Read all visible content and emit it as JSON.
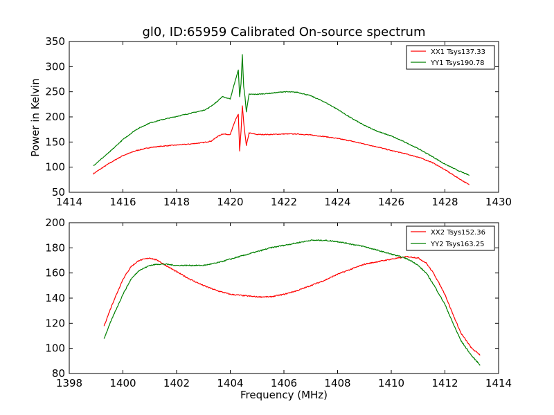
{
  "chart_data": [
    {
      "type": "line",
      "title": "gl0, ID:65959 Calibrated On-source spectrum",
      "xlabel": "",
      "ylabel": "Power in Kelvin",
      "xlim": [
        1414,
        1430
      ],
      "ylim": [
        50,
        350
      ],
      "xticks": [
        1414,
        1416,
        1418,
        1420,
        1422,
        1424,
        1426,
        1428,
        1430
      ],
      "yticks": [
        50,
        100,
        150,
        200,
        250,
        300,
        350
      ],
      "legend_position": "top-right",
      "grid": false,
      "series": [
        {
          "name": "XX1 Tsys137.33",
          "color": "#ff0000",
          "x": [
            1414.9,
            1415.5,
            1416.0,
            1416.5,
            1417.0,
            1417.5,
            1418.0,
            1418.5,
            1419.0,
            1419.3,
            1419.5,
            1419.7,
            1420.0,
            1420.2,
            1420.3,
            1420.35,
            1420.4,
            1420.45,
            1420.5,
            1420.55,
            1420.6,
            1420.7,
            1421.0,
            1421.5,
            1422.0,
            1422.5,
            1423.0,
            1423.5,
            1424.0,
            1424.5,
            1425.0,
            1425.5,
            1426.0,
            1426.5,
            1427.0,
            1427.5,
            1428.0,
            1428.5,
            1428.9
          ],
          "values": [
            87,
            108,
            123,
            133,
            139,
            142,
            144,
            146,
            149,
            152,
            160,
            166,
            165,
            195,
            205,
            132,
            170,
            222,
            190,
            165,
            143,
            168,
            165,
            165,
            166,
            166,
            164,
            161,
            157,
            152,
            146,
            140,
            133,
            127,
            120,
            110,
            95,
            78,
            65
          ]
        },
        {
          "name": "YY1 Tsys190.78",
          "color": "#008000",
          "x": [
            1414.9,
            1415.5,
            1416.0,
            1416.5,
            1417.0,
            1417.5,
            1418.0,
            1418.5,
            1419.0,
            1419.2,
            1419.5,
            1419.7,
            1420.0,
            1420.2,
            1420.3,
            1420.35,
            1420.4,
            1420.45,
            1420.5,
            1420.55,
            1420.6,
            1420.7,
            1421.0,
            1421.5,
            1422.0,
            1422.5,
            1423.0,
            1423.5,
            1424.0,
            1424.5,
            1425.0,
            1425.5,
            1426.0,
            1426.5,
            1427.0,
            1427.5,
            1428.0,
            1428.5,
            1428.9
          ],
          "values": [
            103,
            130,
            155,
            175,
            188,
            195,
            201,
            207,
            213,
            218,
            230,
            240,
            236,
            275,
            293,
            240,
            265,
            324,
            260,
            240,
            210,
            245,
            245,
            247,
            250,
            249,
            242,
            230,
            215,
            198,
            183,
            171,
            162,
            150,
            137,
            122,
            106,
            93,
            84
          ]
        }
      ]
    },
    {
      "type": "line",
      "title": "",
      "xlabel": "Frequency (MHz)",
      "ylabel": "",
      "xlim": [
        1398,
        1414
      ],
      "ylim": [
        80,
        200
      ],
      "xticks": [
        1398,
        1400,
        1402,
        1404,
        1406,
        1408,
        1410,
        1412,
        1414
      ],
      "yticks": [
        80,
        100,
        120,
        140,
        160,
        180,
        200
      ],
      "legend_position": "top-right",
      "grid": false,
      "series": [
        {
          "name": "XX2 Tsys152.36",
          "color": "#ff0000",
          "x": [
            1399.3,
            1399.6,
            1400.0,
            1400.3,
            1400.6,
            1401.0,
            1401.3,
            1401.6,
            1402.0,
            1402.5,
            1403.0,
            1403.5,
            1404.0,
            1404.5,
            1405.0,
            1405.5,
            1406.0,
            1406.5,
            1407.0,
            1407.5,
            1408.0,
            1408.5,
            1409.0,
            1409.5,
            1410.0,
            1410.3,
            1410.6,
            1411.0,
            1411.3,
            1411.6,
            1412.0,
            1412.3,
            1412.6,
            1413.0,
            1413.3
          ],
          "values": [
            118,
            135,
            155,
            165,
            170,
            172,
            170,
            166,
            161,
            155,
            150,
            146,
            143,
            142,
            141,
            141,
            143,
            146,
            150,
            154,
            159,
            163,
            167,
            169,
            171,
            172,
            173,
            172,
            168,
            159,
            143,
            127,
            112,
            100,
            95
          ]
        },
        {
          "name": "YY2 Tsys163.25",
          "color": "#008000",
          "x": [
            1399.3,
            1399.6,
            1400.0,
            1400.3,
            1400.6,
            1401.0,
            1401.3,
            1401.6,
            1402.0,
            1402.5,
            1403.0,
            1403.5,
            1404.0,
            1404.5,
            1405.0,
            1405.5,
            1406.0,
            1406.5,
            1407.0,
            1407.5,
            1408.0,
            1408.5,
            1409.0,
            1409.5,
            1410.0,
            1410.5,
            1410.8,
            1411.0,
            1411.3,
            1411.6,
            1412.0,
            1412.3,
            1412.6,
            1413.0,
            1413.3
          ],
          "values": [
            108,
            124,
            143,
            155,
            162,
            166,
            167,
            167,
            166,
            166,
            166,
            168,
            171,
            174,
            177,
            180,
            182,
            184,
            186,
            186,
            185,
            183,
            181,
            178,
            175,
            172,
            169,
            166,
            160,
            150,
            135,
            120,
            106,
            94,
            87
          ]
        }
      ]
    }
  ]
}
